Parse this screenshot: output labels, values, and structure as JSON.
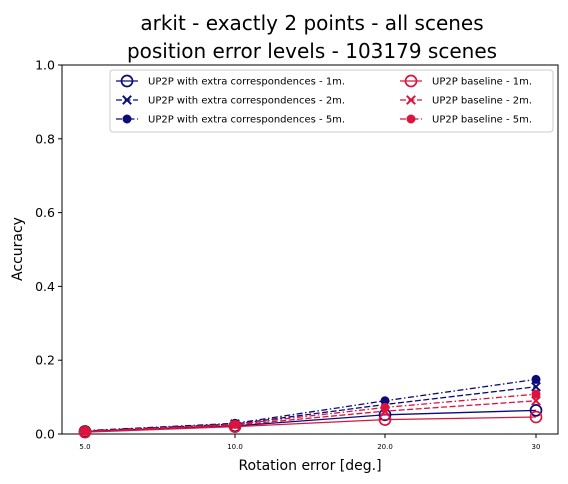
{
  "chart_data": {
    "type": "line",
    "title_line1": "arkit - exactly 2 points - all scenes",
    "title_line2": "position error levels - 103179 scenes",
    "xlabel": "Rotation error [deg.]",
    "ylabel": "Accuracy",
    "categories": [
      "5.0",
      "10.0",
      "20.0",
      "30"
    ],
    "ylim": [
      0,
      1
    ],
    "yticks": [
      "0.0",
      "0.2",
      "0.4",
      "0.6",
      "0.8",
      "1.0"
    ],
    "legend_position": "top-right",
    "colors": {
      "blue": "#0b0b7a",
      "red": "#dc143c"
    },
    "series": [
      {
        "name": "UP2P with extra correspondences - 1m.",
        "color": "blue",
        "dash": "solid",
        "marker": "open-circle",
        "values": [
          0.007,
          0.022,
          0.052,
          0.064
        ]
      },
      {
        "name": "UP2P with extra correspondences - 2m.",
        "color": "blue",
        "dash": "dashed",
        "marker": "x",
        "values": [
          0.008,
          0.027,
          0.08,
          0.128
        ]
      },
      {
        "name": "UP2P with extra correspondences - 5m.",
        "color": "blue",
        "dash": "dashdot",
        "marker": "filled-circle",
        "values": [
          0.009,
          0.029,
          0.09,
          0.148
        ]
      },
      {
        "name": "UP2P baseline - 1m.",
        "color": "red",
        "dash": "solid",
        "marker": "open-circle",
        "values": [
          0.005,
          0.02,
          0.039,
          0.046
        ]
      },
      {
        "name": "UP2P baseline - 2m.",
        "color": "red",
        "dash": "dashed",
        "marker": "x",
        "values": [
          0.006,
          0.024,
          0.062,
          0.09
        ]
      },
      {
        "name": "UP2P baseline - 5m.",
        "color": "red",
        "dash": "dashdot",
        "marker": "filled-circle",
        "values": [
          0.007,
          0.026,
          0.072,
          0.108
        ]
      }
    ]
  }
}
